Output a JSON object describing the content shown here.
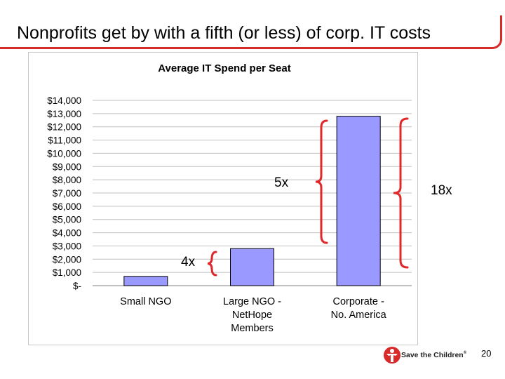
{
  "slide": {
    "title": "Nonprofits get by with a fifth (or less) of corp. IT costs",
    "page_number": "20",
    "logo_text": "Save the Children",
    "logo_mark": "®",
    "brand_color": "#d92a2a"
  },
  "annotations": {
    "ratio_small_to_large": "4x",
    "ratio_large_to_corporate": "5x",
    "ratio_small_to_corporate": "18x",
    "bracket_color": "#e0282a"
  },
  "chart_data": {
    "type": "bar",
    "title": "Average IT Spend per Seat",
    "categories": [
      "Small NGO",
      "Large NGO - Net.Hope Members",
      "Corporate - No. America"
    ],
    "category_lines": [
      [
        "Small NGO"
      ],
      [
        "Large NGO -",
        "NetHope",
        "Members"
      ],
      [
        "Corporate -",
        "No. America"
      ]
    ],
    "values": [
      700,
      2800,
      12800
    ],
    "ylim": [
      0,
      14000
    ],
    "yticks": [
      0,
      1000,
      2000,
      3000,
      4000,
      5000,
      6000,
      7000,
      8000,
      9000,
      10000,
      11000,
      12000,
      13000,
      14000
    ],
    "ytick_labels": [
      "$-",
      "$1,000",
      "$2,000",
      "$3,000",
      "$4,000",
      "$5,000",
      "$6,000",
      "$7,000",
      "$8,000",
      "$9,000",
      "$10,000",
      "$11,000",
      "$12,000",
      "$13,000",
      "$14,000"
    ],
    "xlabel": "",
    "ylabel": "",
    "grid": true,
    "bar_color": "#9999ff",
    "legend": "none"
  }
}
